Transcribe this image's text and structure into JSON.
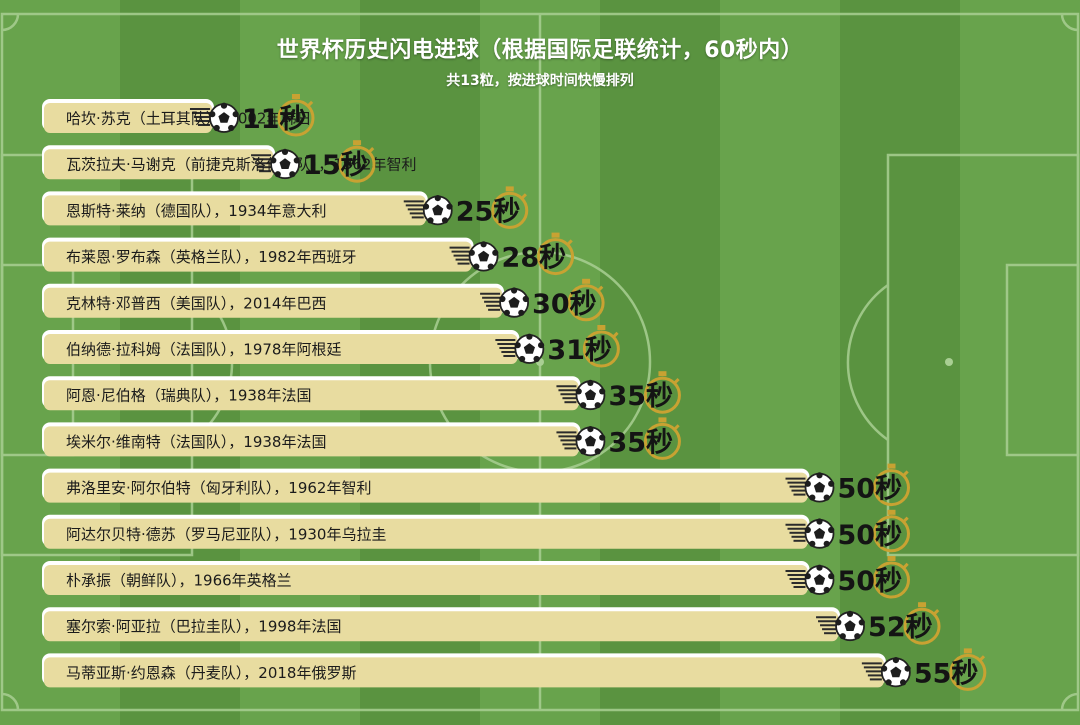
{
  "header": {
    "title": "世界杯历史闪电进球（根据国际足联统计，60秒内）",
    "subtitle": "共13粒，按进球时间快慢排列"
  },
  "colors": {
    "pitch_light": "#68a34c",
    "pitch_dark": "#5a9340",
    "lines": "#a9cf93",
    "bar_fill": "#e8dca0",
    "bar_outline": "#ffffff",
    "stopwatch": "#c8a232",
    "trail": "#2b2b2b"
  },
  "icons": {
    "ball": "soccer-ball-icon",
    "timer": "stopwatch-icon"
  },
  "chart_data": {
    "type": "bar",
    "orientation": "horizontal",
    "unit": "秒",
    "xlim": [
      0,
      60
    ],
    "categories": [
      "哈坎·苏克（土耳其队），2002年韩日",
      "瓦茨拉夫·马谢克（前捷克斯洛伐克队），1962年智利",
      "恩斯特·莱纳（德国队），1934年意大利",
      "布莱恩·罗布森（英格兰队），1982年西班牙",
      "克林特·邓普西（美国队），2014年巴西",
      "伯纳德·拉科姆（法国队），1978年阿根廷",
      "阿恩·尼伯格（瑞典队），1938年法国",
      "埃米尔·维南特（法国队），1938年法国",
      "弗洛里安·阿尔伯特（匈牙利队），1962年智利",
      "阿达尔贝特·德苏（罗马尼亚队），1930年乌拉圭",
      "朴承振（朝鲜队），1966年英格兰",
      "塞尔索·阿亚拉（巴拉圭队），1998年法国",
      "马蒂亚斯·约恩森（丹麦队），2018年俄罗斯"
    ],
    "values": [
      11,
      15,
      25,
      28,
      30,
      31,
      35,
      35,
      50,
      50,
      50,
      52,
      55
    ],
    "value_labels": [
      "11秒",
      "15秒",
      "25秒",
      "28秒",
      "30秒",
      "31秒",
      "35秒",
      "35秒",
      "50秒",
      "50秒",
      "50秒",
      "52秒",
      "55秒"
    ]
  }
}
